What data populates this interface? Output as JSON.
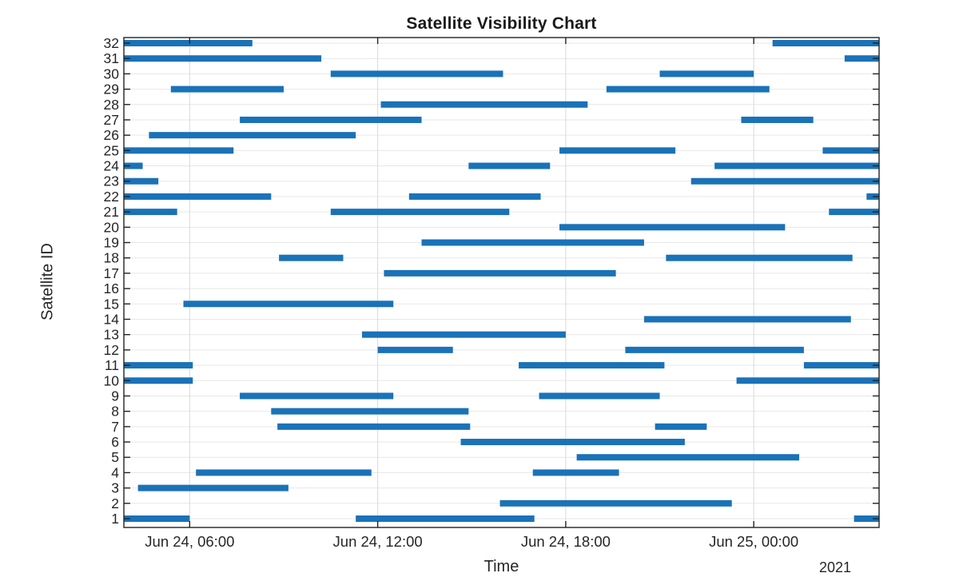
{
  "chart_data": {
    "type": "gantt",
    "title": "Satellite Visibility Chart",
    "xlabel": "Time",
    "ylabel": "Satellite ID",
    "year_label": "2021",
    "time_unit": "hours_after_2021-06-24_00:00",
    "x_range": [
      3.9,
      28.0
    ],
    "x_ticks": [
      {
        "h": 6,
        "label": "Jun 24, 06:00"
      },
      {
        "h": 12,
        "label": "Jun 24, 12:00"
      },
      {
        "h": 18,
        "label": "Jun 24, 18:00"
      },
      {
        "h": 24,
        "label": "Jun 25, 00:00"
      }
    ],
    "grid": true,
    "colors": {
      "bar": "#1A72B8",
      "grid_vertical": "#D9D9D9",
      "grid_horizontal": "#E7E7E7",
      "axis": "#222222",
      "text": "#262626"
    },
    "satellites": [
      {
        "id": 1,
        "windows": [
          [
            3.9,
            6.0
          ],
          [
            11.3,
            17.0
          ],
          [
            27.2,
            28.0
          ]
        ]
      },
      {
        "id": 2,
        "windows": [
          [
            15.9,
            23.3
          ]
        ]
      },
      {
        "id": 3,
        "windows": [
          [
            4.35,
            9.15
          ]
        ]
      },
      {
        "id": 4,
        "windows": [
          [
            6.2,
            11.8
          ],
          [
            16.95,
            19.7
          ]
        ]
      },
      {
        "id": 5,
        "windows": [
          [
            18.35,
            25.45
          ]
        ]
      },
      {
        "id": 6,
        "windows": [
          [
            14.65,
            21.8
          ]
        ]
      },
      {
        "id": 7,
        "windows": [
          [
            8.8,
            14.95
          ],
          [
            20.85,
            22.5
          ]
        ]
      },
      {
        "id": 8,
        "windows": [
          [
            8.6,
            14.9
          ]
        ]
      },
      {
        "id": 9,
        "windows": [
          [
            7.6,
            12.5
          ],
          [
            17.15,
            21.0
          ]
        ]
      },
      {
        "id": 10,
        "windows": [
          [
            3.9,
            6.1
          ],
          [
            23.45,
            28.0
          ]
        ]
      },
      {
        "id": 11,
        "windows": [
          [
            3.9,
            6.1
          ],
          [
            16.5,
            21.15
          ],
          [
            25.6,
            28.0
          ]
        ]
      },
      {
        "id": 12,
        "windows": [
          [
            12.0,
            14.4
          ],
          [
            19.9,
            25.6
          ]
        ]
      },
      {
        "id": 13,
        "windows": [
          [
            11.5,
            18.0
          ]
        ]
      },
      {
        "id": 14,
        "windows": [
          [
            20.5,
            27.1
          ]
        ]
      },
      {
        "id": 15,
        "windows": [
          [
            5.8,
            12.5
          ]
        ]
      },
      {
        "id": 16,
        "windows": []
      },
      {
        "id": 17,
        "windows": [
          [
            12.2,
            19.6
          ]
        ]
      },
      {
        "id": 18,
        "windows": [
          [
            8.85,
            10.9
          ],
          [
            21.2,
            27.15
          ]
        ]
      },
      {
        "id": 19,
        "windows": [
          [
            13.4,
            20.5
          ]
        ]
      },
      {
        "id": 20,
        "windows": [
          [
            17.8,
            25.0
          ]
        ]
      },
      {
        "id": 21,
        "windows": [
          [
            3.9,
            5.6
          ],
          [
            10.5,
            16.2
          ],
          [
            26.4,
            28.0
          ]
        ]
      },
      {
        "id": 22,
        "windows": [
          [
            3.9,
            8.6
          ],
          [
            13.0,
            17.2
          ],
          [
            27.6,
            28.0
          ]
        ]
      },
      {
        "id": 23,
        "windows": [
          [
            3.9,
            5.0
          ],
          [
            22.0,
            28.0
          ]
        ]
      },
      {
        "id": 24,
        "windows": [
          [
            3.9,
            4.5
          ],
          [
            14.9,
            17.5
          ],
          [
            22.75,
            28.0
          ]
        ]
      },
      {
        "id": 25,
        "windows": [
          [
            3.9,
            7.4
          ],
          [
            17.8,
            21.5
          ],
          [
            26.2,
            28.0
          ]
        ]
      },
      {
        "id": 26,
        "windows": [
          [
            4.7,
            11.3
          ]
        ]
      },
      {
        "id": 27,
        "windows": [
          [
            7.6,
            13.4
          ],
          [
            23.6,
            25.9
          ]
        ]
      },
      {
        "id": 28,
        "windows": [
          [
            12.1,
            18.7
          ]
        ]
      },
      {
        "id": 29,
        "windows": [
          [
            5.4,
            9.0
          ],
          [
            19.3,
            24.5
          ]
        ]
      },
      {
        "id": 30,
        "windows": [
          [
            10.5,
            16.0
          ],
          [
            21.0,
            24.0
          ]
        ]
      },
      {
        "id": 31,
        "windows": [
          [
            3.9,
            10.2
          ],
          [
            26.9,
            28.0
          ]
        ]
      },
      {
        "id": 32,
        "windows": [
          [
            3.9,
            8.0
          ],
          [
            24.6,
            28.0
          ]
        ]
      }
    ]
  }
}
